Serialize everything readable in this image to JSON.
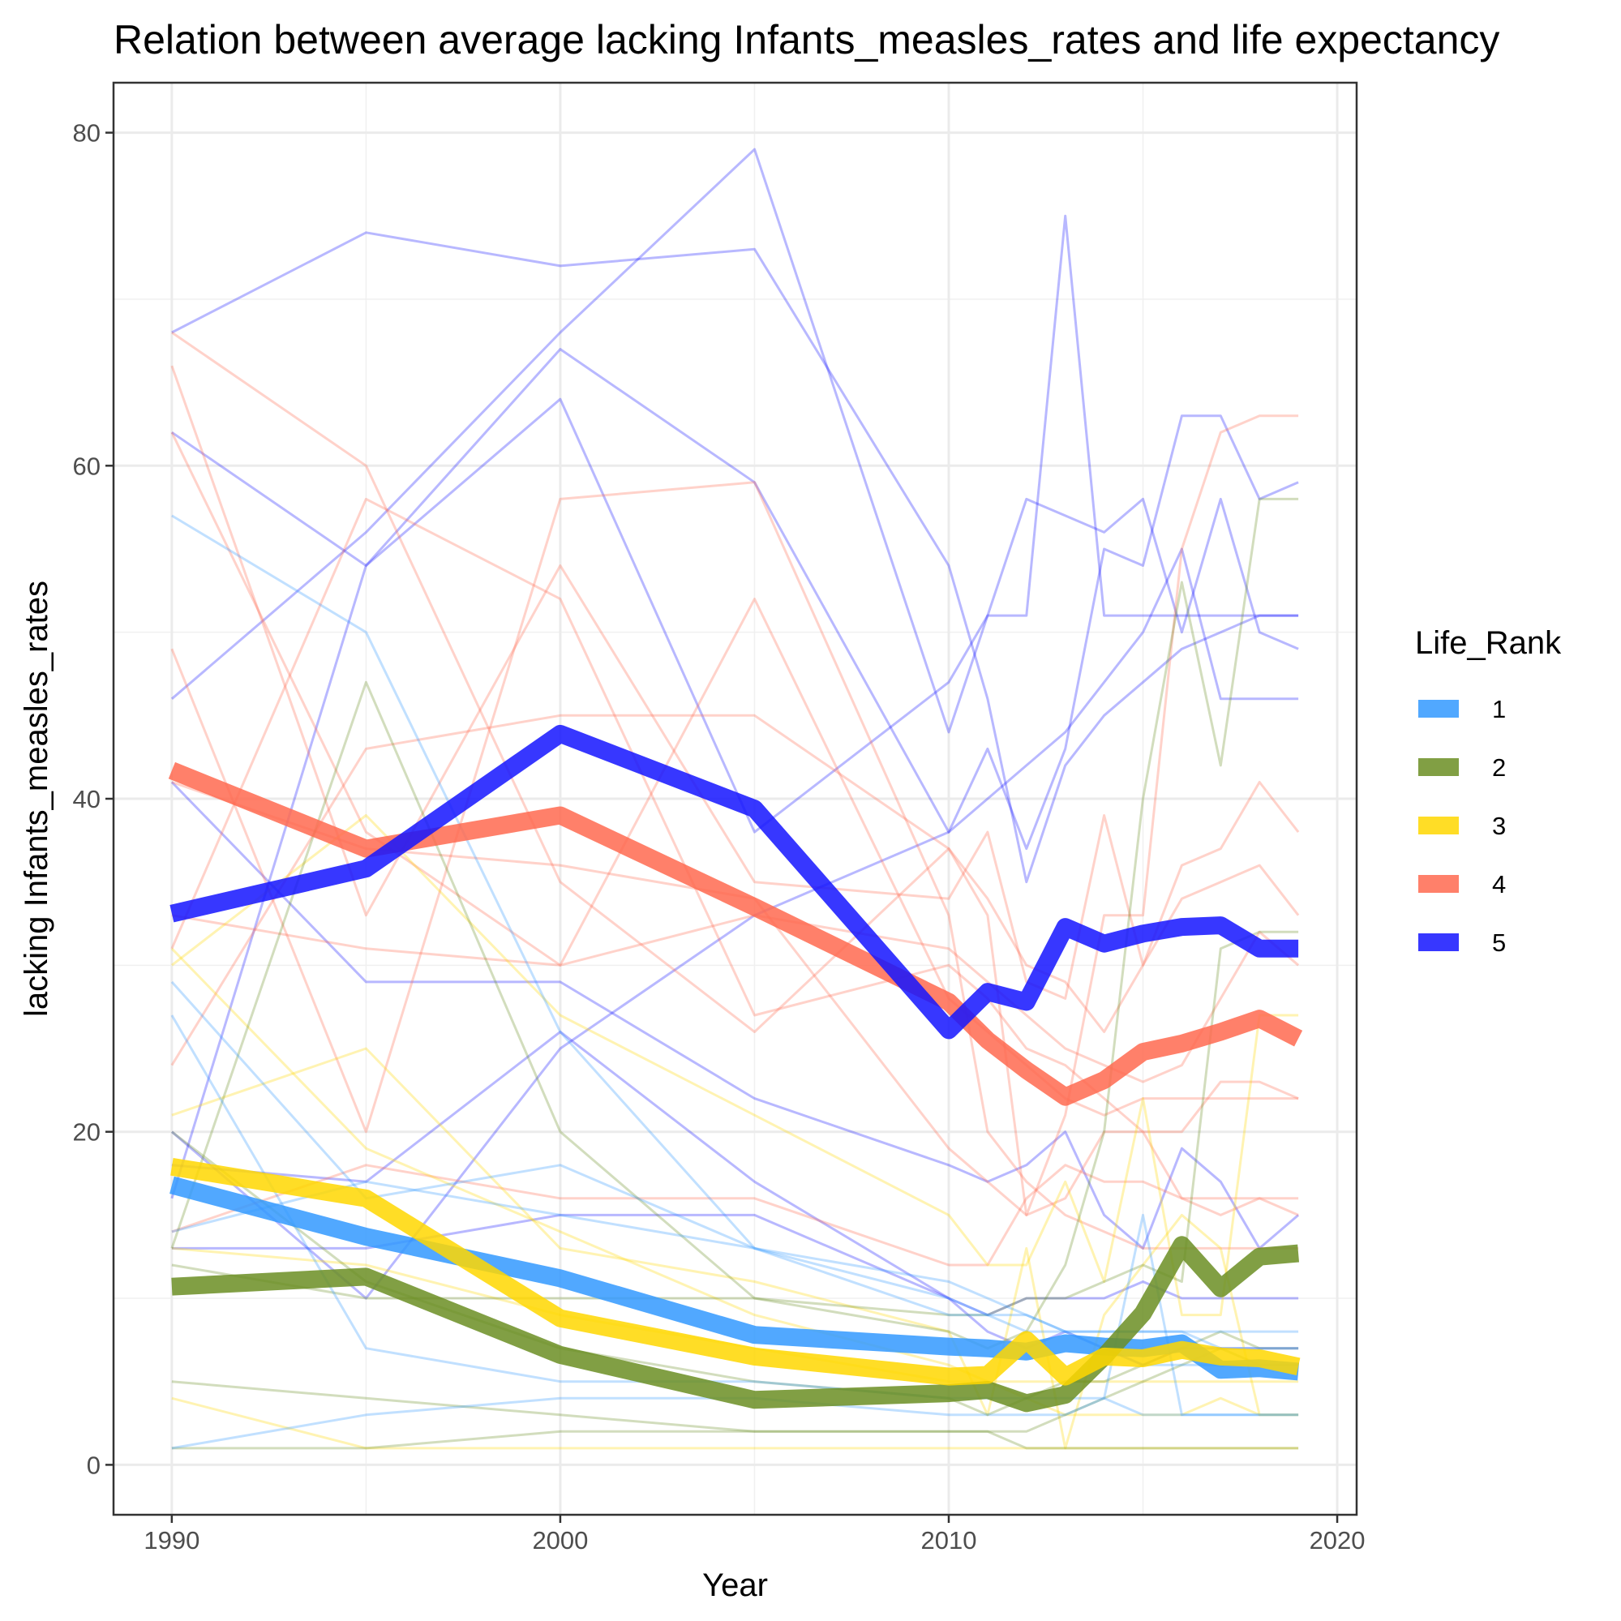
{
  "chart_data": {
    "type": "line",
    "title": "Relation between average lacking Infants_measles_rates and life expectancy",
    "xlabel": "Year",
    "ylabel": "lacking Infants_measles_rates",
    "xlim": [
      1988.5,
      2020.5
    ],
    "ylim": [
      -3,
      83
    ],
    "x_ticks": [
      1990,
      2000,
      2010,
      2020
    ],
    "y_ticks": [
      0,
      20,
      40,
      60,
      80
    ],
    "x_tick_labels": [
      "1990",
      "2000",
      "2010",
      "2020"
    ],
    "y_tick_labels": [
      "0",
      "20",
      "40",
      "60",
      "80"
    ],
    "grid": true,
    "legend": {
      "title": "Life_Rank",
      "position": "right"
    },
    "colors": {
      "1": "#3399ff",
      "2": "#6b8e23",
      "3": "#ffd700",
      "4": "#ff6a50",
      "5": "#1414ff"
    },
    "series": [
      {
        "name": "1",
        "x": [
          1990,
          1995,
          2000,
          2005,
          2010,
          2011,
          2012,
          2013,
          2014,
          2015,
          2016,
          2017,
          2018,
          2019
        ],
        "values": [
          16.8,
          13.7,
          11.2,
          7.8,
          7.1,
          7.0,
          6.8,
          7.3,
          7.1,
          7.0,
          7.3,
          5.7,
          5.8,
          5.6
        ]
      },
      {
        "name": "2",
        "x": [
          1990,
          1995,
          2000,
          2005,
          2010,
          2011,
          2012,
          2013,
          2014,
          2015,
          2016,
          2017,
          2018,
          2019
        ],
        "values": [
          10.7,
          11.3,
          6.6,
          3.9,
          4.3,
          4.5,
          3.7,
          4.2,
          6.5,
          9.1,
          13.2,
          10.6,
          12.5,
          12.7
        ]
      },
      {
        "name": "3",
        "x": [
          1990,
          1995,
          2000,
          2005,
          2010,
          2011,
          2012,
          2013,
          2014,
          2015,
          2016,
          2017,
          2018,
          2019
        ],
        "values": [
          17.9,
          16.0,
          8.8,
          6.5,
          5.3,
          5.4,
          7.5,
          5.3,
          6.5,
          6.4,
          6.9,
          6.5,
          6.4,
          5.9
        ]
      },
      {
        "name": "4",
        "x": [
          1990,
          1995,
          2000,
          2005,
          2010,
          2011,
          2012,
          2013,
          2014,
          2015,
          2016,
          2017,
          2018,
          2019
        ],
        "values": [
          41.7,
          37.0,
          39.0,
          33.5,
          27.8,
          25.5,
          23.7,
          22.1,
          23.1,
          24.8,
          25.3,
          26.0,
          26.8,
          25.6
        ]
      },
      {
        "name": "5",
        "x": [
          1990,
          1995,
          2000,
          2005,
          2010,
          2011,
          2012,
          2013,
          2014,
          2015,
          2016,
          2017,
          2018,
          2019
        ],
        "values": [
          33.1,
          35.8,
          43.9,
          39.4,
          26.1,
          28.4,
          27.8,
          32.3,
          31.3,
          31.9,
          32.3,
          32.4,
          31.0,
          31.0
        ]
      }
    ],
    "country_series": [
      {
        "group": "5",
        "x": [
          1990,
          1995,
          2000,
          2005,
          2010,
          2011,
          2012,
          2013,
          2014,
          2015,
          2016,
          2017,
          2018,
          2019
        ],
        "values": [
          68,
          74,
          72,
          73,
          54,
          46,
          35,
          42,
          45,
          47,
          49,
          50,
          51,
          51
        ]
      },
      {
        "group": "5",
        "x": [
          1990,
          1995,
          2000,
          2005,
          2010,
          2011,
          2012,
          2013,
          2014,
          2015,
          2016,
          2017,
          2018,
          2019
        ],
        "values": [
          46,
          56,
          68,
          79,
          44,
          51,
          51,
          75,
          51,
          51,
          51,
          51,
          51,
          51
        ]
      },
      {
        "group": "5",
        "x": [
          1990,
          1995,
          2000,
          2005,
          2010,
          2011,
          2012,
          2013,
          2014,
          2015,
          2016,
          2017,
          2018,
          2019
        ],
        "values": [
          62,
          54,
          67,
          59,
          38,
          43,
          37,
          43,
          55,
          54,
          63,
          63,
          58,
          59
        ]
      },
      {
        "group": "5",
        "x": [
          1990,
          1995,
          2000,
          2005,
          2010,
          2011,
          2012,
          2013,
          2014,
          2015,
          2016,
          2017,
          2018,
          2019
        ],
        "values": [
          41,
          29,
          29,
          22,
          18,
          17,
          18,
          20,
          15,
          13,
          19,
          17,
          13,
          15
        ]
      },
      {
        "group": "5",
        "x": [
          1990,
          1995,
          2000,
          2005,
          2010,
          2011,
          2012,
          2013,
          2014,
          2015,
          2016,
          2017,
          2018,
          2019
        ],
        "values": [
          16,
          54,
          64,
          38,
          47,
          51,
          58,
          57,
          56,
          58,
          50,
          58,
          50,
          49
        ]
      },
      {
        "group": "5",
        "x": [
          1990,
          1995,
          2000,
          2005,
          2010,
          2011,
          2012,
          2013,
          2014,
          2015,
          2016,
          2017,
          2018,
          2019
        ],
        "values": [
          13,
          13,
          15,
          15,
          10,
          9,
          10,
          10,
          10,
          11,
          10,
          10,
          10,
          10
        ]
      },
      {
        "group": "5",
        "x": [
          1990,
          1995,
          2000,
          2005,
          2010,
          2011,
          2012,
          2013,
          2014,
          2015,
          2016,
          2017,
          2018,
          2019
        ],
        "values": [
          18,
          17,
          26,
          17,
          10,
          8,
          7,
          8,
          7,
          6,
          7,
          7,
          7,
          7
        ]
      },
      {
        "group": "5",
        "x": [
          1990,
          1995,
          2000,
          2005,
          2010,
          2011,
          2012,
          2013,
          2014,
          2015,
          2016,
          2017,
          2018,
          2019
        ],
        "values": [
          20,
          10,
          25,
          33,
          38,
          40,
          42,
          44,
          47,
          50,
          55,
          46,
          46,
          46
        ]
      },
      {
        "group": "4",
        "x": [
          1990,
          1995,
          2000,
          2005,
          2010,
          2011,
          2012,
          2013,
          2014,
          2015,
          2016,
          2017,
          2018,
          2019
        ],
        "values": [
          66,
          33,
          54,
          35,
          34,
          38,
          29,
          28,
          39,
          30,
          36,
          37,
          41,
          38
        ]
      },
      {
        "group": "4",
        "x": [
          1990,
          1995,
          2000,
          2005,
          2010,
          2011,
          2012,
          2013,
          2014,
          2015,
          2016,
          2017,
          2018,
          2019
        ],
        "values": [
          68,
          60,
          35,
          26,
          37,
          33,
          15,
          21,
          33,
          33,
          55,
          62,
          63,
          63
        ]
      },
      {
        "group": "4",
        "x": [
          1990,
          1995,
          2000,
          2005,
          2010,
          2011,
          2012,
          2013,
          2014,
          2015,
          2016,
          2017,
          2018,
          2019
        ],
        "values": [
          49,
          20,
          58,
          59,
          33,
          20,
          17,
          15,
          14,
          13,
          13,
          13,
          13,
          13
        ]
      },
      {
        "group": "4",
        "x": [
          1990,
          1995,
          2000,
          2005,
          2010,
          2011,
          2012,
          2013,
          2014,
          2015,
          2016,
          2017,
          2018,
          2019
        ],
        "values": [
          24,
          43,
          45,
          45,
          37,
          34,
          30,
          29,
          26,
          30,
          34,
          35,
          36,
          33
        ]
      },
      {
        "group": "4",
        "x": [
          1990,
          1995,
          2000,
          2005,
          2010,
          2011,
          2012,
          2013,
          2014,
          2015,
          2016,
          2017,
          2018,
          2019
        ],
        "values": [
          31,
          58,
          52,
          27,
          30,
          28,
          25,
          24,
          22,
          20,
          20,
          23,
          23,
          22
        ]
      },
      {
        "group": "4",
        "x": [
          1990,
          1995,
          2000,
          2005,
          2010,
          2011,
          2012,
          2013,
          2014,
          2015,
          2016,
          2017,
          2018,
          2019
        ],
        "values": [
          62,
          38,
          30,
          52,
          28,
          26,
          24,
          22,
          21,
          22,
          22,
          22,
          22,
          22
        ]
      },
      {
        "group": "4",
        "x": [
          1990,
          1995,
          2000,
          2005,
          2010,
          2011,
          2012,
          2013,
          2014,
          2015,
          2016,
          2017,
          2018,
          2019
        ],
        "values": [
          33,
          31,
          30,
          33,
          31,
          29,
          27,
          25,
          24,
          23,
          24,
          28,
          32,
          30
        ]
      },
      {
        "group": "4",
        "x": [
          1990,
          1995,
          2000,
          2005,
          2010,
          2011,
          2012,
          2013,
          2014,
          2015,
          2016,
          2017,
          2018,
          2019
        ],
        "values": [
          14,
          18,
          16,
          16,
          12,
          12,
          16,
          18,
          17,
          17,
          16,
          16,
          16,
          16
        ]
      },
      {
        "group": "4",
        "x": [
          1990,
          1995,
          2000,
          2005,
          2010,
          2011,
          2012,
          2013,
          2014,
          2015,
          2016,
          2017,
          2018,
          2019
        ],
        "values": [
          41,
          37,
          36,
          34,
          19,
          17,
          15,
          16,
          20,
          20,
          16,
          15,
          16,
          15
        ]
      },
      {
        "group": "3",
        "x": [
          1990,
          1995,
          2000,
          2005,
          2010,
          2011,
          2012,
          2013,
          2014,
          2015,
          2016,
          2017,
          2018,
          2019
        ],
        "values": [
          30,
          39,
          27,
          21,
          15,
          12,
          12,
          17,
          11,
          22,
          9,
          9,
          27,
          27
        ]
      },
      {
        "group": "3",
        "x": [
          1990,
          1995,
          2000,
          2005,
          2010,
          2011,
          2012,
          2013,
          2014,
          2015,
          2016,
          2017,
          2018,
          2019
        ],
        "values": [
          21,
          25,
          13,
          11,
          8,
          3,
          13,
          1,
          9,
          12,
          15,
          13,
          3,
          3
        ]
      },
      {
        "group": "3",
        "x": [
          1990,
          1995,
          2000,
          2005,
          2010,
          2011,
          2012,
          2013,
          2014,
          2015,
          2016,
          2017,
          2018,
          2019
        ],
        "values": [
          31,
          19,
          14,
          9,
          6,
          5,
          4,
          3,
          3,
          3,
          3,
          4,
          3,
          3
        ]
      },
      {
        "group": "3",
        "x": [
          1990,
          1995,
          2000,
          2005,
          2010,
          2011,
          2012,
          2013,
          2014,
          2015,
          2016,
          2017,
          2018,
          2019
        ],
        "values": [
          4,
          1,
          1,
          1,
          1,
          1,
          1,
          1,
          1,
          1,
          1,
          1,
          1,
          1
        ]
      },
      {
        "group": "3",
        "x": [
          1990,
          1995,
          2000,
          2005,
          2010,
          2011,
          2012,
          2013,
          2014,
          2015,
          2016,
          2017,
          2018,
          2019
        ],
        "values": [
          13,
          12,
          9,
          7,
          5,
          5,
          5,
          5,
          5,
          5,
          5,
          5,
          5,
          5
        ]
      },
      {
        "group": "2",
        "x": [
          1990,
          1995,
          2000,
          2005,
          2010,
          2011,
          2012,
          2013,
          2014,
          2015,
          2016,
          2017,
          2018,
          2019
        ],
        "values": [
          13,
          47,
          20,
          10,
          8,
          7,
          8,
          12,
          20,
          40,
          53,
          42,
          58,
          58
        ]
      },
      {
        "group": "2",
        "x": [
          1990,
          1995,
          2000,
          2005,
          2010,
          2011,
          2012,
          2013,
          2014,
          2015,
          2016,
          2017,
          2018,
          2019
        ],
        "values": [
          20,
          11,
          7,
          5,
          4,
          3,
          4,
          5,
          5,
          6,
          7,
          8,
          7,
          7
        ]
      },
      {
        "group": "2",
        "x": [
          1990,
          1995,
          2000,
          2005,
          2010,
          2011,
          2012,
          2013,
          2014,
          2015,
          2016,
          2017,
          2018,
          2019
        ],
        "values": [
          1,
          1,
          2,
          2,
          2,
          2,
          2,
          3,
          4,
          5,
          6,
          7,
          6,
          6
        ]
      },
      {
        "group": "2",
        "x": [
          1990,
          1995,
          2000,
          2005,
          2010,
          2011,
          2012,
          2013,
          2014,
          2015,
          2016,
          2017,
          2018,
          2019
        ],
        "values": [
          12,
          10,
          10,
          10,
          9,
          9,
          10,
          10,
          11,
          12,
          11,
          31,
          32,
          32
        ]
      },
      {
        "group": "2",
        "x": [
          1990,
          1995,
          2000,
          2005,
          2010,
          2011,
          2012,
          2013,
          2014,
          2015,
          2016,
          2017,
          2018,
          2019
        ],
        "values": [
          5,
          4,
          3,
          2,
          2,
          2,
          1,
          1,
          1,
          1,
          1,
          1,
          1,
          1
        ]
      },
      {
        "group": "1",
        "x": [
          1990,
          1995,
          2000,
          2005,
          2010,
          2011,
          2012,
          2013,
          2014,
          2015,
          2016,
          2017,
          2018,
          2019
        ],
        "values": [
          57,
          50,
          26,
          13,
          11,
          10,
          9,
          8,
          7,
          6,
          6,
          6,
          6,
          6
        ]
      },
      {
        "group": "1",
        "x": [
          1990,
          1995,
          2000,
          2005,
          2010,
          2011,
          2012,
          2013,
          2014,
          2015,
          2016,
          2017,
          2018,
          2019
        ],
        "values": [
          29,
          16,
          18,
          13,
          10,
          9,
          9,
          8,
          8,
          8,
          8,
          7,
          7,
          7
        ]
      },
      {
        "group": "1",
        "x": [
          1990,
          1995,
          2000,
          2005,
          2010,
          2011,
          2012,
          2013,
          2014,
          2015,
          2016,
          2017,
          2018,
          2019
        ],
        "values": [
          27,
          7,
          5,
          5,
          4,
          4,
          4,
          4,
          4,
          3,
          3,
          3,
          3,
          3
        ]
      },
      {
        "group": "1",
        "x": [
          1990,
          1995,
          2000,
          2005,
          2010,
          2011,
          2012,
          2013,
          2014,
          2015,
          2016,
          2017,
          2018,
          2019
        ],
        "values": [
          1,
          3,
          4,
          4,
          3,
          3,
          3,
          3,
          4,
          15,
          3,
          3,
          3,
          3
        ]
      },
      {
        "group": "1",
        "x": [
          1990,
          1995,
          2000,
          2005,
          2010,
          2011,
          2012,
          2013,
          2014,
          2015,
          2016,
          2017,
          2018,
          2019
        ],
        "values": [
          14,
          17,
          15,
          13,
          9,
          9,
          8,
          8,
          8,
          8,
          8,
          8,
          8,
          8
        ]
      }
    ]
  }
}
